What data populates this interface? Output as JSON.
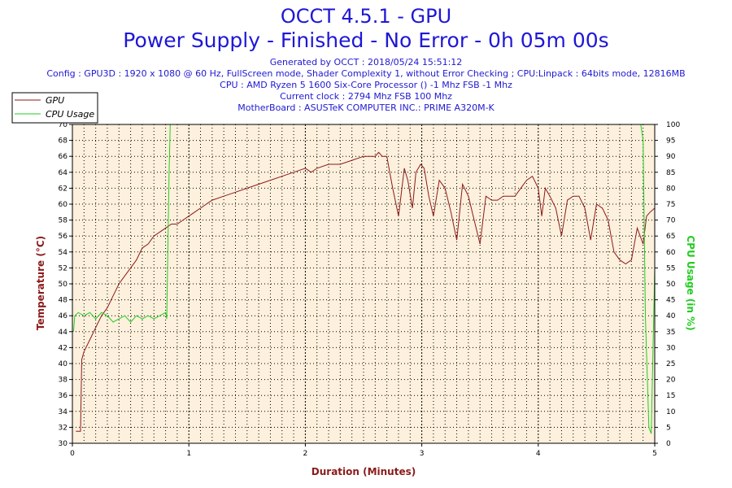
{
  "header": {
    "title": "OCCT 4.5.1 - GPU",
    "subtitle": "Power Supply - Finished - No Error - 0h 05m 00s",
    "info": [
      "Generated by OCCT : 2018/05/24 15:51:12",
      "Config : GPU3D : 1920 x 1080 @ 60 Hz, FullScreen mode, Shader Complexity 1, without Error Checking ; CPU:Linpack : 64bits mode, 12816MB",
      "CPU : AMD Ryzen 5 1600 Six-Core Processor () -1 Mhz FSB -1 Mhz",
      "Current clock : 2794 Mhz FSB 100 Mhz",
      "MotherBoard : ASUSTeK COMPUTER INC.: PRIME A320M-K"
    ]
  },
  "colors": {
    "gpu": "#8b1a1a",
    "cpu": "#22cc22",
    "plot_bg": "#fdf0dc",
    "grid": "#000000"
  },
  "chart_data": {
    "type": "line",
    "xlabel": "Duration (Minutes)",
    "ylabel": "Temperature (°C)",
    "y2label": "CPU Usage (in %)",
    "xlim": [
      0,
      5
    ],
    "ylim": [
      30,
      70
    ],
    "y2lim": [
      0,
      100
    ],
    "x_ticks": [
      0,
      1,
      2,
      3,
      4,
      5
    ],
    "y_ticks": [
      30,
      32,
      34,
      36,
      38,
      40,
      42,
      44,
      46,
      48,
      50,
      52,
      54,
      56,
      58,
      60,
      62,
      64,
      66,
      68,
      70
    ],
    "y2_ticks": [
      0,
      5,
      10,
      15,
      20,
      25,
      30,
      35,
      40,
      45,
      50,
      55,
      60,
      65,
      70,
      75,
      80,
      85,
      90,
      95,
      100
    ],
    "grid": true,
    "legend_position": "top-left",
    "series": [
      {
        "name": "GPU",
        "axis": "left",
        "x": [
          0.03,
          0.07,
          0.08,
          0.1,
          0.15,
          0.2,
          0.25,
          0.3,
          0.35,
          0.4,
          0.45,
          0.5,
          0.55,
          0.6,
          0.65,
          0.7,
          0.75,
          0.8,
          0.85,
          0.9,
          0.95,
          1.0,
          1.05,
          1.1,
          1.15,
          1.2,
          1.3,
          1.4,
          1.5,
          1.6,
          1.7,
          1.8,
          1.9,
          2.0,
          2.05,
          2.1,
          2.2,
          2.3,
          2.4,
          2.5,
          2.6,
          2.63,
          2.66,
          2.7,
          2.75,
          2.8,
          2.85,
          2.88,
          2.92,
          2.95,
          2.99,
          3.02,
          3.06,
          3.1,
          3.15,
          3.2,
          3.25,
          3.3,
          3.35,
          3.4,
          3.45,
          3.5,
          3.55,
          3.6,
          3.65,
          3.7,
          3.75,
          3.8,
          3.85,
          3.9,
          3.95,
          4.0,
          4.03,
          4.06,
          4.1,
          4.15,
          4.2,
          4.25,
          4.3,
          4.35,
          4.4,
          4.45,
          4.5,
          4.55,
          4.6,
          4.65,
          4.7,
          4.75,
          4.8,
          4.85,
          4.9,
          4.93,
          4.96,
          5.0
        ],
        "values": [
          31.5,
          31.5,
          40.5,
          41.5,
          43,
          44.5,
          46,
          47,
          48.5,
          50,
          51,
          52,
          53,
          54.5,
          55,
          56,
          56.5,
          57,
          57.5,
          57.5,
          58,
          58.5,
          59,
          59.5,
          60,
          60.5,
          61,
          61.5,
          62,
          62.5,
          63,
          63.5,
          64,
          64.5,
          64,
          64.5,
          65,
          65,
          65.5,
          66,
          66,
          66.5,
          66,
          66,
          62,
          58.5,
          64.5,
          63,
          59.5,
          64,
          65,
          64.5,
          61,
          58.5,
          63,
          62,
          59,
          55.5,
          62.5,
          61,
          58,
          55,
          61,
          60.5,
          60.5,
          61,
          61,
          61,
          62,
          63,
          63.5,
          62,
          58.5,
          62,
          61,
          59.5,
          56,
          60.5,
          61,
          61,
          59.5,
          55.5,
          60,
          59.5,
          58,
          54,
          53,
          52.5,
          53,
          57,
          55,
          58.5,
          59,
          59.5
        ],
        "note_ignore": ""
      },
      {
        "name": "CPU Usage",
        "axis": "right",
        "x": [
          0.01,
          0.02,
          0.05,
          0.1,
          0.15,
          0.2,
          0.25,
          0.3,
          0.35,
          0.4,
          0.45,
          0.5,
          0.55,
          0.6,
          0.65,
          0.7,
          0.75,
          0.8,
          0.81,
          0.83,
          0.84,
          1.0,
          1.5,
          2.0,
          2.5,
          3.0,
          3.5,
          4.0,
          4.5,
          4.88,
          4.9,
          4.92,
          4.95,
          4.97,
          5.0
        ],
        "values": [
          35,
          40,
          41,
          40,
          41,
          39,
          41,
          40,
          38,
          39,
          40,
          38,
          40,
          39,
          40,
          39,
          40,
          41,
          39,
          85,
          100,
          100,
          100,
          100,
          100,
          100,
          100,
          100,
          100,
          100,
          95,
          40,
          5,
          3,
          55
        ]
      }
    ]
  }
}
